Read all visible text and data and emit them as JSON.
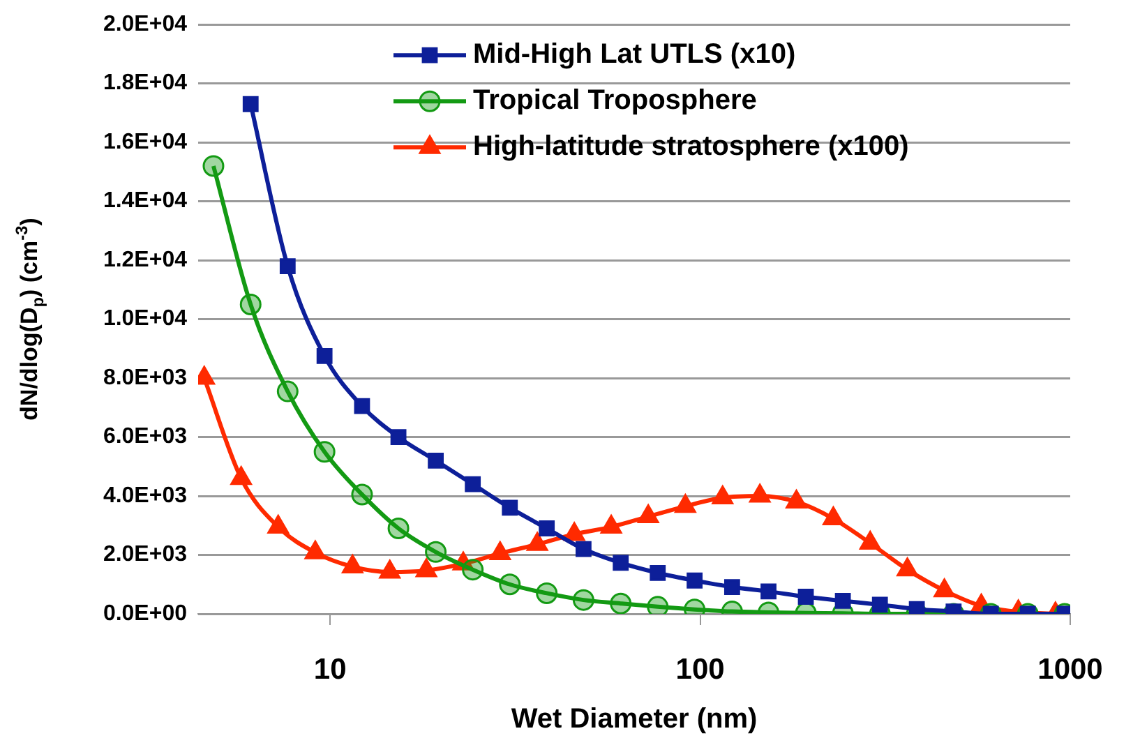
{
  "chart_data": {
    "type": "line",
    "xlabel": "Wet Diameter (nm)",
    "ylabel": "dN/dlog(D$_{p}$) (cm$^{-3}$)",
    "log": "x",
    "grid": "y",
    "legend": "top right",
    "line_style": "solid",
    "xlim": [
      4.4,
      1000
    ],
    "xticks": [
      10,
      100,
      1000
    ],
    "ylim": [
      0,
      20000
    ],
    "yticks": [
      {
        "value": 0,
        "label": "0.0E+00"
      },
      {
        "value": 2000,
        "label": "2.0E+03"
      },
      {
        "value": 4000,
        "label": "4.0E+03"
      },
      {
        "value": 6000,
        "label": "6.0E+03"
      },
      {
        "value": 8000,
        "label": "8.0E+03"
      },
      {
        "value": 10000,
        "label": "1.0E+04"
      },
      {
        "value": 12000,
        "label": "1.2E+04"
      },
      {
        "value": 14000,
        "label": "1.4E+04"
      },
      {
        "value": 16000,
        "label": "1.6E+04"
      },
      {
        "value": 18000,
        "label": "1.8E+04"
      },
      {
        "value": 20000,
        "label": "2.0E+04"
      }
    ],
    "series": [
      {
        "name": "Mid-High Lat UTLS (x10)",
        "color": "#0d1f99",
        "marker": "square",
        "x": [
          6.1,
          7.68,
          9.66,
          12.2,
          15.3,
          19.3,
          24.3,
          30.6,
          38.5,
          48.4,
          61,
          76.8,
          96.6,
          122,
          153,
          193,
          243,
          306,
          385,
          484,
          610,
          768,
          966
        ],
        "values": [
          17300,
          11800,
          8750,
          7050,
          6000,
          5200,
          4400,
          3600,
          2900,
          2200,
          1730,
          1390,
          1130,
          910,
          760,
          580,
          440,
          310,
          160,
          80,
          0,
          0,
          0
        ]
      },
      {
        "name": "Tropical Troposphere",
        "color": "#139a13",
        "marker": "circle",
        "x": [
          4.84,
          6.1,
          7.68,
          9.66,
          12.2,
          15.3,
          19.3,
          24.3,
          30.6,
          38.5,
          48.4,
          61,
          76.8,
          96.6,
          122,
          153,
          193,
          243,
          306,
          385,
          484,
          610,
          768,
          966
        ],
        "values": [
          15200,
          10500,
          7550,
          5500,
          4050,
          2900,
          2100,
          1500,
          1000,
          700,
          470,
          350,
          240,
          150,
          80,
          50,
          30,
          20,
          0,
          0,
          0,
          0,
          0,
          0
        ]
      },
      {
        "name": "High-latitude stratosphere (x100)",
        "color": "#ff2a00",
        "marker": "triangle",
        "x": [
          4.57,
          5.75,
          7.24,
          9.12,
          11.5,
          14.5,
          18.2,
          22.9,
          28.8,
          36.3,
          45.7,
          57.5,
          72.4,
          91.2,
          115,
          145,
          182,
          229,
          288,
          363,
          457,
          575,
          724,
          912
        ],
        "values": [
          8000,
          4600,
          2950,
          2080,
          1600,
          1420,
          1470,
          1700,
          2050,
          2360,
          2700,
          2950,
          3300,
          3650,
          3940,
          4000,
          3800,
          3230,
          2400,
          1500,
          790,
          270,
          70,
          0
        ]
      }
    ]
  }
}
